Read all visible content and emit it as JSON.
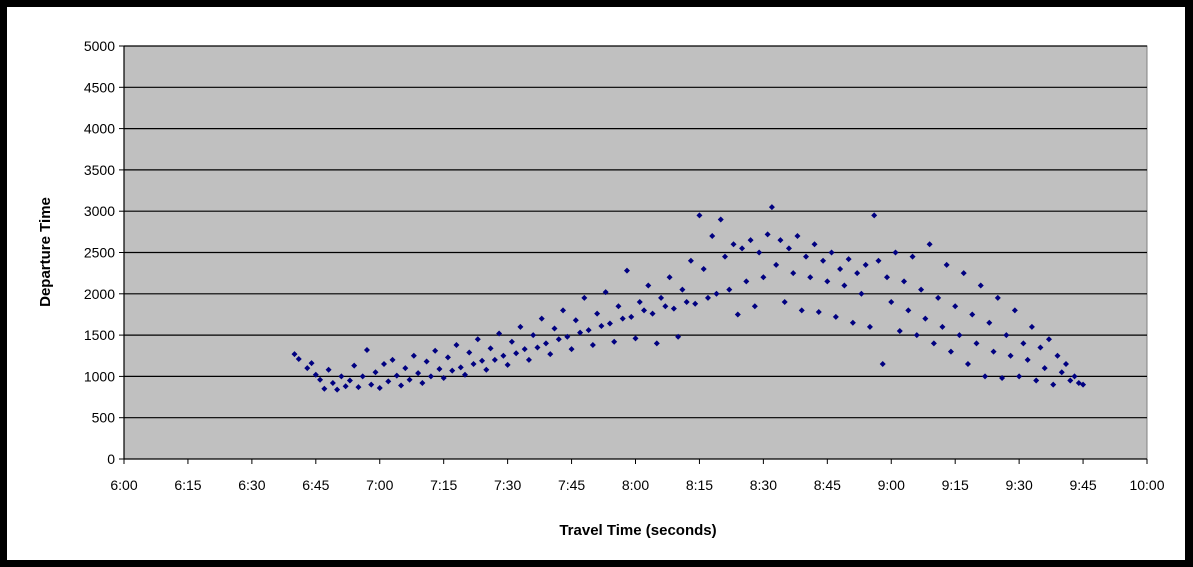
{
  "chart_data": {
    "type": "scatter",
    "title": "",
    "xlabel": "Travel Time (seconds)",
    "ylabel": "Departure Time",
    "x_ticks": [
      "6:00",
      "6:15",
      "6:30",
      "6:45",
      "7:00",
      "7:15",
      "7:30",
      "7:45",
      "8:00",
      "8:15",
      "8:30",
      "8:45",
      "9:00",
      "9:15",
      "9:30",
      "9:45",
      "10:00"
    ],
    "y_ticks": [
      "0",
      "500",
      "1000",
      "1500",
      "2000",
      "2500",
      "3000",
      "3500",
      "4000",
      "4500",
      "5000"
    ],
    "xlim": [
      "6:00",
      "10:00"
    ],
    "ylim": [
      0,
      5000
    ],
    "grid": "horizontal",
    "legend": "none",
    "colors": {
      "plot_background": "#c0c0c0",
      "marker": "#000080",
      "gridline": "#000000"
    },
    "series": [
      {
        "marker": "diamond",
        "points": [
          [
            "6:40",
            1270
          ],
          [
            "6:41",
            1210
          ],
          [
            "6:43",
            1100
          ],
          [
            "6:44",
            1160
          ],
          [
            "6:45",
            1020
          ],
          [
            "6:46",
            960
          ],
          [
            "6:47",
            850
          ],
          [
            "6:48",
            1080
          ],
          [
            "6:49",
            920
          ],
          [
            "6:50",
            840
          ],
          [
            "6:51",
            1000
          ],
          [
            "6:52",
            880
          ],
          [
            "6:53",
            950
          ],
          [
            "6:54",
            1130
          ],
          [
            "6:55",
            870
          ],
          [
            "6:56",
            1000
          ],
          [
            "6:57",
            1320
          ],
          [
            "6:58",
            900
          ],
          [
            "6:59",
            1050
          ],
          [
            "7:00",
            860
          ],
          [
            "7:01",
            1150
          ],
          [
            "7:02",
            940
          ],
          [
            "7:03",
            1200
          ],
          [
            "7:04",
            1010
          ],
          [
            "7:05",
            890
          ],
          [
            "7:06",
            1100
          ],
          [
            "7:07",
            960
          ],
          [
            "7:08",
            1250
          ],
          [
            "7:09",
            1040
          ],
          [
            "7:10",
            920
          ],
          [
            "7:11",
            1180
          ],
          [
            "7:12",
            1000
          ],
          [
            "7:13",
            1310
          ],
          [
            "7:14",
            1090
          ],
          [
            "7:15",
            980
          ],
          [
            "7:16",
            1230
          ],
          [
            "7:17",
            1070
          ],
          [
            "7:18",
            1380
          ],
          [
            "7:19",
            1110
          ],
          [
            "7:20",
            1020
          ],
          [
            "7:21",
            1290
          ],
          [
            "7:22",
            1150
          ],
          [
            "7:23",
            1450
          ],
          [
            "7:24",
            1190
          ],
          [
            "7:25",
            1080
          ],
          [
            "7:26",
            1340
          ],
          [
            "7:27",
            1200
          ],
          [
            "7:28",
            1520
          ],
          [
            "7:29",
            1250
          ],
          [
            "7:30",
            1140
          ],
          [
            "7:31",
            1420
          ],
          [
            "7:32",
            1280
          ],
          [
            "7:33",
            1600
          ],
          [
            "7:34",
            1330
          ],
          [
            "7:35",
            1200
          ],
          [
            "7:36",
            1500
          ],
          [
            "7:37",
            1350
          ],
          [
            "7:38",
            1700
          ],
          [
            "7:39",
            1400
          ],
          [
            "7:40",
            1270
          ],
          [
            "7:41",
            1580
          ],
          [
            "7:42",
            1450
          ],
          [
            "7:43",
            1800
          ],
          [
            "7:44",
            1480
          ],
          [
            "7:45",
            1330
          ],
          [
            "7:46",
            1680
          ],
          [
            "7:47",
            1530
          ],
          [
            "7:48",
            1950
          ],
          [
            "7:49",
            1560
          ],
          [
            "7:50",
            1380
          ],
          [
            "7:51",
            1760
          ],
          [
            "7:52",
            1610
          ],
          [
            "7:53",
            2020
          ],
          [
            "7:54",
            1640
          ],
          [
            "7:55",
            1420
          ],
          [
            "7:56",
            1850
          ],
          [
            "7:57",
            1700
          ],
          [
            "7:58",
            2280
          ],
          [
            "7:59",
            1720
          ],
          [
            "8:00",
            1460
          ],
          [
            "8:01",
            1900
          ],
          [
            "8:02",
            1800
          ],
          [
            "8:03",
            2100
          ],
          [
            "8:04",
            1760
          ],
          [
            "8:05",
            1400
          ],
          [
            "8:06",
            1950
          ],
          [
            "8:07",
            1850
          ],
          [
            "8:08",
            2200
          ],
          [
            "8:09",
            1820
          ],
          [
            "8:10",
            1480
          ],
          [
            "8:11",
            2050
          ],
          [
            "8:12",
            1900
          ],
          [
            "8:13",
            2400
          ],
          [
            "8:14",
            1880
          ],
          [
            "8:15",
            2950
          ],
          [
            "8:16",
            2300
          ],
          [
            "8:17",
            1950
          ],
          [
            "8:18",
            2700
          ],
          [
            "8:19",
            2000
          ],
          [
            "8:20",
            2900
          ],
          [
            "8:21",
            2450
          ],
          [
            "8:22",
            2050
          ],
          [
            "8:23",
            2600
          ],
          [
            "8:24",
            1750
          ],
          [
            "8:25",
            2550
          ],
          [
            "8:26",
            2150
          ],
          [
            "8:27",
            2650
          ],
          [
            "8:28",
            1850
          ],
          [
            "8:29",
            2500
          ],
          [
            "8:30",
            2200
          ],
          [
            "8:31",
            2720
          ],
          [
            "8:32",
            3050
          ],
          [
            "8:33",
            2350
          ],
          [
            "8:34",
            2650
          ],
          [
            "8:35",
            1900
          ],
          [
            "8:36",
            2550
          ],
          [
            "8:37",
            2250
          ],
          [
            "8:38",
            2700
          ],
          [
            "8:39",
            1800
          ],
          [
            "8:40",
            2450
          ],
          [
            "8:41",
            2200
          ],
          [
            "8:42",
            2600
          ],
          [
            "8:43",
            1780
          ],
          [
            "8:44",
            2400
          ],
          [
            "8:45",
            2150
          ],
          [
            "8:46",
            2500
          ],
          [
            "8:47",
            1720
          ],
          [
            "8:48",
            2300
          ],
          [
            "8:49",
            2100
          ],
          [
            "8:50",
            2420
          ],
          [
            "8:51",
            1650
          ],
          [
            "8:52",
            2250
          ],
          [
            "8:53",
            2000
          ],
          [
            "8:54",
            2350
          ],
          [
            "8:55",
            1600
          ],
          [
            "8:56",
            2950
          ],
          [
            "8:57",
            2400
          ],
          [
            "8:58",
            1150
          ],
          [
            "8:59",
            2200
          ],
          [
            "9:00",
            1900
          ],
          [
            "9:01",
            2500
          ],
          [
            "9:02",
            1550
          ],
          [
            "9:03",
            2150
          ],
          [
            "9:04",
            1800
          ],
          [
            "9:05",
            2450
          ],
          [
            "9:06",
            1500
          ],
          [
            "9:07",
            2050
          ],
          [
            "9:08",
            1700
          ],
          [
            "9:09",
            2600
          ],
          [
            "9:10",
            1400
          ],
          [
            "9:11",
            1950
          ],
          [
            "9:12",
            1600
          ],
          [
            "9:13",
            2350
          ],
          [
            "9:14",
            1300
          ],
          [
            "9:15",
            1850
          ],
          [
            "9:16",
            1500
          ],
          [
            "9:17",
            2250
          ],
          [
            "9:18",
            1150
          ],
          [
            "9:19",
            1750
          ],
          [
            "9:20",
            1400
          ],
          [
            "9:21",
            2100
          ],
          [
            "9:22",
            1000
          ],
          [
            "9:23",
            1650
          ],
          [
            "9:24",
            1300
          ],
          [
            "9:25",
            1950
          ],
          [
            "9:26",
            980
          ],
          [
            "9:27",
            1500
          ],
          [
            "9:28",
            1250
          ],
          [
            "9:29",
            1800
          ],
          [
            "9:30",
            1000
          ],
          [
            "9:31",
            1400
          ],
          [
            "9:32",
            1200
          ],
          [
            "9:33",
            1600
          ],
          [
            "9:34",
            950
          ],
          [
            "9:35",
            1350
          ],
          [
            "9:36",
            1100
          ],
          [
            "9:37",
            1450
          ],
          [
            "9:38",
            900
          ],
          [
            "9:39",
            1250
          ],
          [
            "9:40",
            1050
          ],
          [
            "9:41",
            1150
          ],
          [
            "9:42",
            950
          ],
          [
            "9:43",
            1000
          ],
          [
            "9:44",
            920
          ],
          [
            "9:45",
            900
          ]
        ]
      }
    ]
  }
}
